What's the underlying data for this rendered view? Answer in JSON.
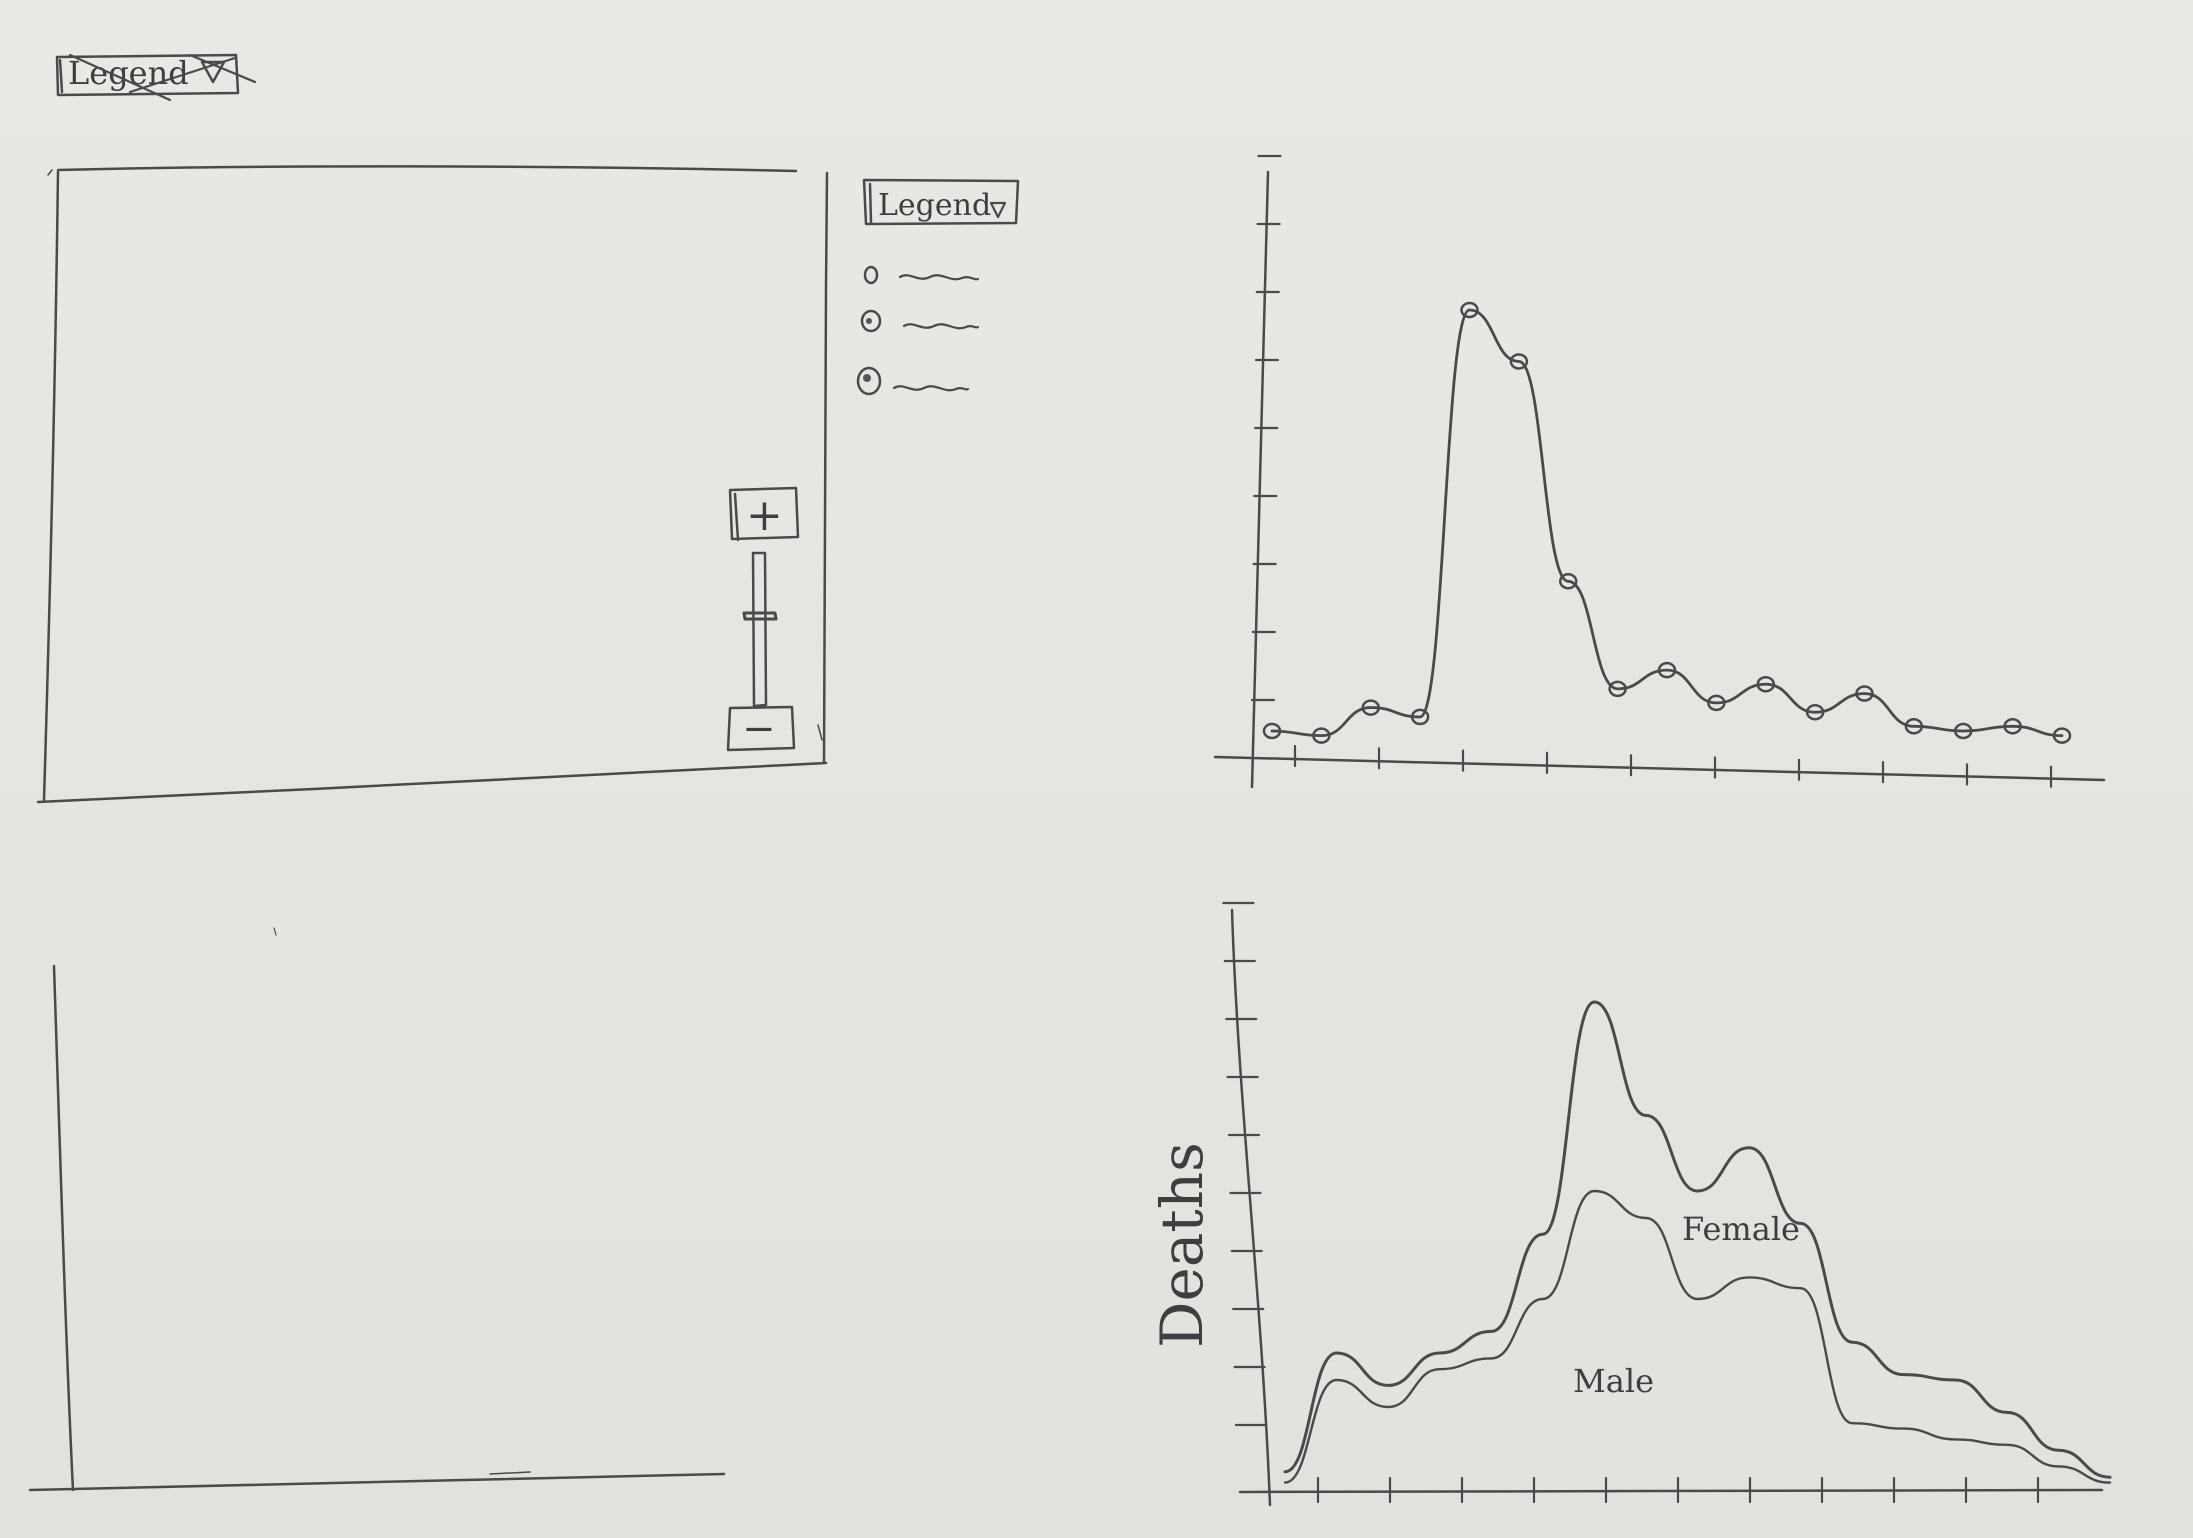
{
  "top_legend_dropdown": {
    "label": "Legend",
    "icon": "triangle-down-icon",
    "crossed_out": true
  },
  "map_panel": {
    "legend_dropdown": {
      "label": "Legend",
      "icon": "triangle-down-icon"
    },
    "legend_items": [
      {
        "marker": "small-circle-icon",
        "text": "~~~"
      },
      {
        "marker": "medium-circle-icon",
        "text": "~~~"
      },
      {
        "marker": "large-circle-icon",
        "text": "~~~"
      }
    ],
    "zoom": {
      "plus_label": "+",
      "minus_label": "−",
      "level": 0.6
    }
  },
  "line_chart": {
    "chart_data": {
      "type": "line",
      "x": [
        1,
        2,
        3,
        4,
        5,
        6,
        7,
        8,
        9,
        10,
        11,
        12,
        13,
        14,
        15,
        16,
        17
      ],
      "y": [
        0.3,
        0.2,
        0.8,
        0.6,
        9.3,
        8.2,
        3.5,
        1.2,
        1.6,
        0.9,
        1.3,
        0.7,
        1.1,
        0.4,
        0.3,
        0.4,
        0.2
      ],
      "marker": "circle",
      "title": "",
      "xlabel": "",
      "ylabel": ""
    }
  },
  "area_chart": {
    "ylabel": "Deaths",
    "chart_data": {
      "type": "area",
      "stacked": true,
      "series": [
        {
          "name": "Male",
          "values": [
            0.1,
            2.0,
            1.5,
            2.2,
            2.4,
            3.5,
            5.5,
            5.0,
            3.5,
            3.9,
            3.7,
            1.2,
            1.1,
            0.9,
            0.8,
            0.4,
            0.1
          ]
        },
        {
          "name": "Female",
          "values": [
            0.2,
            0.5,
            0.4,
            0.3,
            0.5,
            1.2,
            3.5,
            1.9,
            2.0,
            2.4,
            1.2,
            1.5,
            1.0,
            1.1,
            0.6,
            0.3,
            0.1
          ]
        }
      ],
      "x": [
        1,
        2,
        3,
        4,
        5,
        6,
        7,
        8,
        9,
        10,
        11,
        12,
        13,
        14,
        15,
        16,
        17
      ],
      "title": "",
      "xlabel": "",
      "ylabel": "Deaths"
    }
  },
  "empty_chart_panel": {
    "label": ""
  }
}
